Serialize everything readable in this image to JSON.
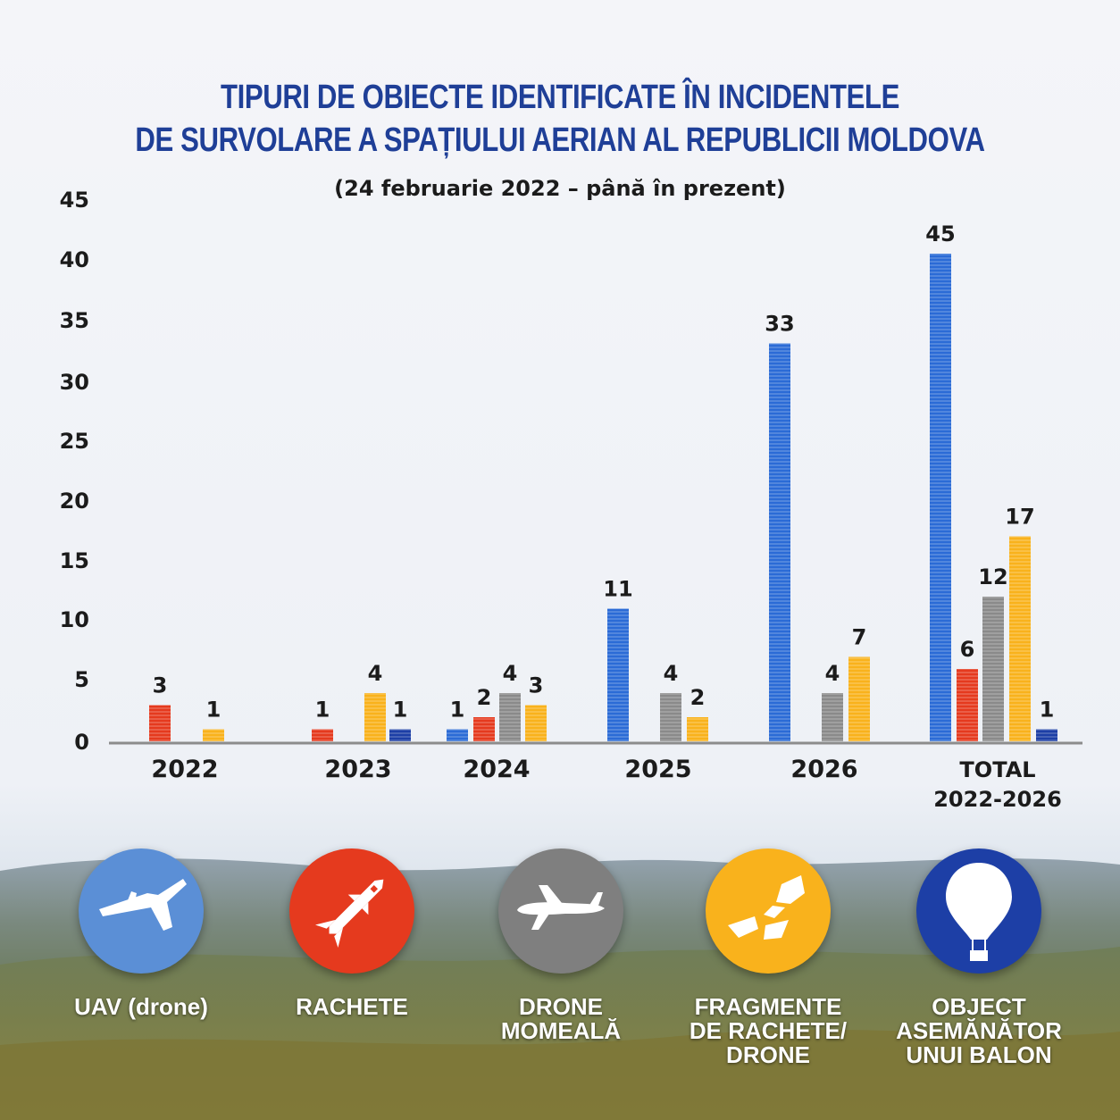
{
  "header": {
    "title_line1": "TIPURI DE OBIECTE IDENTIFICATE ÎN INCIDENTELE",
    "title_line2": "DE SURVOLARE A SPAȚIULUI AERIAN AL REPUBLICII MOLDOVA",
    "subtitle": "(24 februarie 2022 – până în prezent)"
  },
  "colors": {
    "uav": "#2b6bd6",
    "rachete": "#e53a1e",
    "momeala": "#8a8a8a",
    "fragmente": "#f9b21c",
    "balon": "#1d3fa6",
    "title": "#1f3f97"
  },
  "chart_data": {
    "type": "bar",
    "title": "TIPURI DE OBIECTE IDENTIFICATE ÎN INCIDENTELE DE SURVOLARE A SPAȚIULUI AERIAN AL REPUBLICII MOLDOVA",
    "subtitle": "(24 februarie 2022 – până în prezent)",
    "ylim": [
      0,
      45
    ],
    "yticks": [
      0,
      5,
      10,
      15,
      20,
      25,
      30,
      35,
      40,
      45
    ],
    "grid": false,
    "categories": [
      {
        "label": "2022",
        "bars": [
          {
            "series": "rachete",
            "value": 3
          },
          {
            "series": "fragmente",
            "value": 1
          }
        ]
      },
      {
        "label": "2023",
        "bars": [
          {
            "series": "rachete",
            "value": 1
          },
          {
            "series": "fragmente",
            "value": 4
          },
          {
            "series": "balon",
            "value": 1
          }
        ]
      },
      {
        "label": "2024",
        "bars": [
          {
            "series": "uav",
            "value": 1
          },
          {
            "series": "rachete",
            "value": 2
          },
          {
            "series": "momeala",
            "value": 4
          },
          {
            "series": "fragmente",
            "value": 3
          }
        ]
      },
      {
        "label": "2025",
        "bars": [
          {
            "series": "uav",
            "value": 11
          },
          {
            "series": "momeala",
            "value": 4
          },
          {
            "series": "fragmente",
            "value": 2
          }
        ]
      },
      {
        "label": "2026",
        "bars": [
          {
            "series": "uav",
            "value": 33
          },
          {
            "series": "momeala",
            "value": 4
          },
          {
            "series": "fragmente",
            "value": 7
          }
        ]
      },
      {
        "label": "TOTAL\n2022-2026",
        "bars": [
          {
            "series": "uav",
            "value": 45
          },
          {
            "series": "rachete",
            "value": 6
          },
          {
            "series": "momeala",
            "value": 12
          },
          {
            "series": "fragmente",
            "value": 17
          },
          {
            "series": "balon",
            "value": 1
          }
        ]
      }
    ],
    "series": [
      {
        "key": "uav",
        "name": "UAV (drone)"
      },
      {
        "key": "rachete",
        "name": "RACHETE"
      },
      {
        "key": "momeala",
        "name": "DRONE\nMOMEALĂ"
      },
      {
        "key": "fragmente",
        "name": "FRAGMENTE\nDE RACHETE/\nDRONE"
      },
      {
        "key": "balon",
        "name": "OBJECT\nASEMĂNĂTOR\nUNUI BALON"
      }
    ]
  },
  "legend": [
    {
      "key": "uav",
      "label": "UAV (drone)",
      "icon": "drone-icon"
    },
    {
      "key": "rachete",
      "label": "RACHETE",
      "icon": "missile-icon"
    },
    {
      "key": "momeala",
      "label": "DRONE\nMOMEALĂ",
      "icon": "decoy-drone-icon"
    },
    {
      "key": "fragmente",
      "label": "FRAGMENTE\nDE RACHETE/\nDRONE",
      "icon": "fragments-icon"
    },
    {
      "key": "balon",
      "label": "OBJECT\nASEMĂNĂTOR\nUNUI BALON",
      "icon": "balloon-icon"
    }
  ]
}
